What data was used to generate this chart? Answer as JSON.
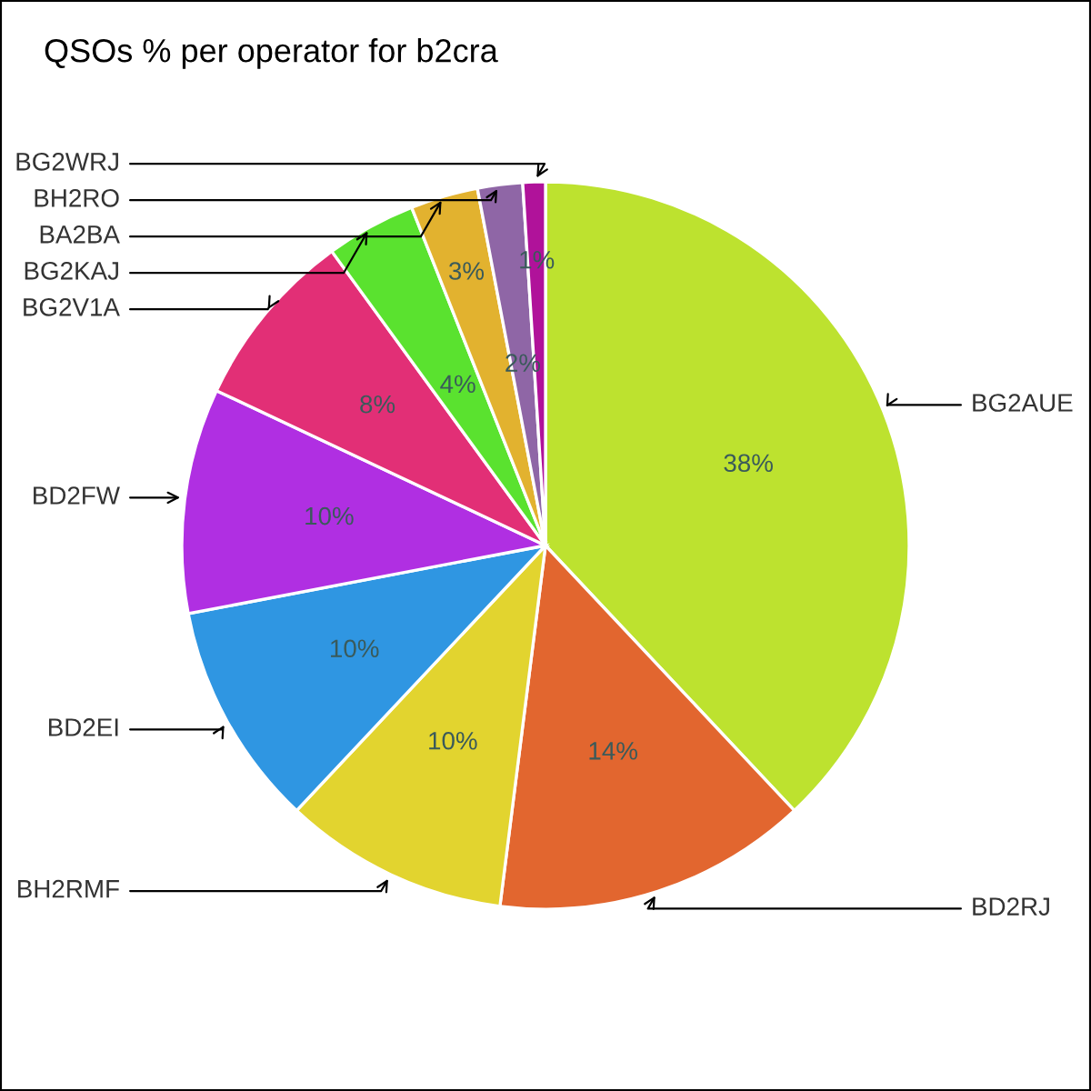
{
  "chart_data": {
    "type": "pie",
    "title": "QSOs % per operator for b2cra",
    "categories": [
      "BG2AUE",
      "BD2RJ",
      "BH2RMF",
      "BD2EI",
      "BD2FW",
      "BG2V1A",
      "BG2KAJ",
      "BA2BA",
      "BH2RO",
      "BG2WRJ"
    ],
    "values": [
      38,
      14,
      10,
      10,
      10,
      8,
      4,
      3,
      2,
      1
    ],
    "value_labels": [
      "38%",
      "14%",
      "10%",
      "10%",
      "10%",
      "8%",
      "4%",
      "3%",
      "2%",
      "1%"
    ],
    "colors": [
      "#bde22f",
      "#e2662f",
      "#e2d42f",
      "#2f96e2",
      "#b02fe2",
      "#e22f76",
      "#5ae22f",
      "#e2b22f",
      "#8f66a6",
      "#b0129a"
    ],
    "legend": false
  }
}
